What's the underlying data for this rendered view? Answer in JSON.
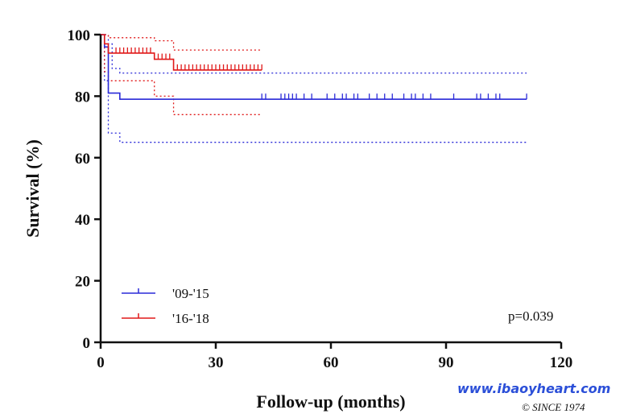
{
  "chart_data": {
    "type": "line",
    "title": "",
    "xlabel": "Follow-up (months)",
    "ylabel": "Survival (%)",
    "xlim": [
      0,
      120
    ],
    "ylim": [
      0,
      100
    ],
    "xticks": [
      0,
      30,
      60,
      90,
      120
    ],
    "yticks": [
      0,
      20,
      40,
      60,
      80,
      100
    ],
    "grid": false,
    "legend_position": "bottom-left",
    "annotation": "p=0.039",
    "series": [
      {
        "name": "'09-'15",
        "color": "#2a2ad8",
        "style": "step",
        "values": [
          [
            0,
            100
          ],
          [
            1,
            96
          ],
          [
            2,
            81
          ],
          [
            5,
            81
          ],
          [
            5,
            79
          ],
          [
            111,
            79
          ]
        ],
        "ci_upper": [
          [
            0,
            100
          ],
          [
            2,
            97
          ],
          [
            3,
            89
          ],
          [
            5,
            87.5
          ],
          [
            111,
            87.5
          ]
        ],
        "ci_lower": [
          [
            0,
            100
          ],
          [
            1,
            85
          ],
          [
            2,
            68
          ],
          [
            5,
            65
          ],
          [
            111,
            65
          ]
        ],
        "censored": [
          42,
          43,
          47,
          48,
          49,
          50,
          51,
          53,
          55,
          59,
          61,
          63,
          64,
          66,
          67,
          70,
          72,
          74,
          76,
          79,
          81,
          82,
          84,
          86,
          92,
          98,
          99,
          101,
          103,
          104,
          111
        ]
      },
      {
        "name": "'16-'18",
        "color": "#e01818",
        "style": "step",
        "values": [
          [
            0,
            100
          ],
          [
            1,
            97
          ],
          [
            2,
            94
          ],
          [
            14,
            94
          ],
          [
            14,
            92
          ],
          [
            19,
            92
          ],
          [
            19,
            88.5
          ],
          [
            42,
            88.5
          ]
        ],
        "ci_upper": [
          [
            0,
            100
          ],
          [
            2,
            99
          ],
          [
            14,
            98
          ],
          [
            19,
            98
          ],
          [
            19,
            95
          ],
          [
            42,
            95
          ]
        ],
        "ci_lower": [
          [
            0,
            100
          ],
          [
            1,
            88
          ],
          [
            2,
            85
          ],
          [
            14,
            85
          ],
          [
            14,
            80
          ],
          [
            19,
            80
          ],
          [
            19,
            74
          ],
          [
            42,
            74
          ]
        ],
        "censored": [
          2,
          4,
          5,
          6,
          7,
          8,
          9,
          10,
          11,
          12,
          13,
          15,
          16,
          17,
          18,
          20,
          21,
          22,
          23,
          24,
          25,
          26,
          27,
          28,
          29,
          30,
          31,
          32,
          33,
          34,
          35,
          36,
          37,
          38,
          39,
          40,
          41,
          42
        ]
      }
    ]
  },
  "watermark": {
    "site": "www.ibaoyheart.com",
    "since": "© SINCE 1974"
  }
}
